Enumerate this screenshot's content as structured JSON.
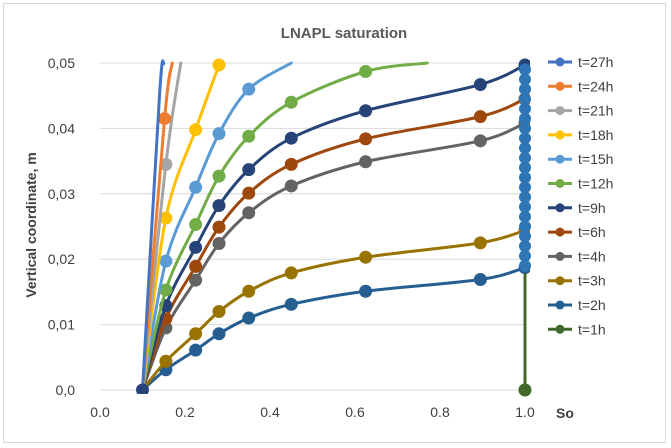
{
  "chart_data": {
    "type": "scatter",
    "title": "LNAPL saturation",
    "ylabel": "Vertical coordinate, m",
    "xlabel": "So",
    "xlim": [
      0.0,
      1.0
    ],
    "ylim": [
      0.0,
      0.05
    ],
    "x_ticks": [
      "0.0",
      "0.2",
      "0.4",
      "0.6",
      "0.8",
      "1.0"
    ],
    "y_ticks": [
      "0,0",
      "0,01",
      "0,02",
      "0,03",
      "0,04",
      "0,05"
    ],
    "grid": "horizontal",
    "legend_position": "right",
    "series": [
      {
        "name": "t=27h",
        "color": "#4472c4",
        "x": [
          0.1,
          0.14,
          0.15
        ],
        "y": [
          0.0,
          0.045,
          0.05
        ],
        "markers": false
      },
      {
        "name": "t=24h",
        "color": "#ed7d31",
        "x": [
          0.1,
          0.152,
          0.17
        ],
        "y": [
          0.0,
          0.0415,
          0.05
        ],
        "markers": [
          1
        ]
      },
      {
        "name": "t=21h",
        "color": "#a5a5a5",
        "x": [
          0.1,
          0.155,
          0.19
        ],
        "y": [
          0.0,
          0.0345,
          0.05
        ],
        "markers": [
          1
        ]
      },
      {
        "name": "t=18h",
        "color": "#ffc000",
        "x": [
          0.1,
          0.155,
          0.225,
          0.28
        ],
        "y": [
          0.0,
          0.0263,
          0.0398,
          0.0497
        ],
        "markers": [
          1,
          2,
          3
        ]
      },
      {
        "name": "t=15h",
        "color": "#5b9bd5",
        "x": [
          0.1,
          0.155,
          0.225,
          0.28,
          0.35,
          0.45
        ],
        "y": [
          0.0,
          0.0197,
          0.031,
          0.0392,
          0.046,
          0.05
        ],
        "markers": [
          1,
          2,
          3,
          4
        ]
      },
      {
        "name": "t=12h",
        "color": "#70ad47",
        "x": [
          0.1,
          0.155,
          0.225,
          0.28,
          0.35,
          0.45,
          0.625,
          0.77
        ],
        "y": [
          0.0,
          0.0153,
          0.0253,
          0.0327,
          0.0388,
          0.044,
          0.0487,
          0.05
        ],
        "markers": [
          1,
          2,
          3,
          4,
          5,
          6
        ]
      },
      {
        "name": "t=9h",
        "color": "#264478",
        "x": [
          0.1,
          0.155,
          0.225,
          0.28,
          0.35,
          0.45,
          0.625,
          0.895,
          1.0
        ],
        "y": [
          0.0,
          0.0129,
          0.0218,
          0.0282,
          0.0337,
          0.0385,
          0.0427,
          0.0467,
          0.0497
        ],
        "markers": [
          1,
          2,
          3,
          4,
          5,
          6,
          7,
          8
        ]
      },
      {
        "name": "t=6h",
        "color": "#9e480e",
        "x": [
          0.1,
          0.155,
          0.225,
          0.28,
          0.35,
          0.45,
          0.625,
          0.895,
          1.0
        ],
        "y": [
          0.0,
          0.0109,
          0.0189,
          0.0249,
          0.0301,
          0.0345,
          0.0384,
          0.0418,
          0.0445
        ],
        "markers": [
          1,
          2,
          3,
          4,
          5,
          6,
          7,
          8
        ]
      },
      {
        "name": "t=4h",
        "color": "#636363",
        "x": [
          0.1,
          0.155,
          0.225,
          0.28,
          0.35,
          0.45,
          0.625,
          0.895,
          1.0
        ],
        "y": [
          0.0,
          0.0095,
          0.0168,
          0.0224,
          0.0271,
          0.0312,
          0.0349,
          0.0381,
          0.0408
        ],
        "markers": [
          1,
          2,
          3,
          4,
          5,
          6,
          7,
          8
        ]
      },
      {
        "name": "t=3h",
        "color": "#997300",
        "x": [
          0.1,
          0.155,
          0.225,
          0.28,
          0.35,
          0.45,
          0.625,
          0.895,
          1.0
        ],
        "y": [
          0.0,
          0.0044,
          0.0086,
          0.012,
          0.0151,
          0.0179,
          0.0203,
          0.0225,
          0.0244
        ],
        "markers": [
          1,
          2,
          3,
          4,
          5,
          6,
          7,
          8
        ]
      },
      {
        "name": "t=2h",
        "color": "#255e91",
        "x": [
          0.1,
          0.155,
          0.225,
          0.28,
          0.35,
          0.45,
          0.625,
          0.895,
          1.0
        ],
        "y": [
          0.0,
          0.0031,
          0.0061,
          0.0086,
          0.011,
          0.0131,
          0.0151,
          0.0169,
          0.0187
        ],
        "markers": [
          1,
          2,
          3,
          4,
          5,
          6,
          7,
          8
        ]
      },
      {
        "name": "t=1h",
        "color": "#43682b",
        "x": [
          1.0,
          1.0
        ],
        "y": [
          0.0,
          0.05
        ],
        "markers": [
          0
        ]
      }
    ],
    "wall_markers": {
      "x": 1.0,
      "color": "#2e75b6",
      "y": [
        0.019,
        0.0205,
        0.022,
        0.0235,
        0.025,
        0.0265,
        0.028,
        0.0295,
        0.031,
        0.0325,
        0.034,
        0.0355,
        0.037,
        0.0385,
        0.04,
        0.0415,
        0.043,
        0.0445,
        0.046,
        0.0475,
        0.049
      ]
    }
  }
}
